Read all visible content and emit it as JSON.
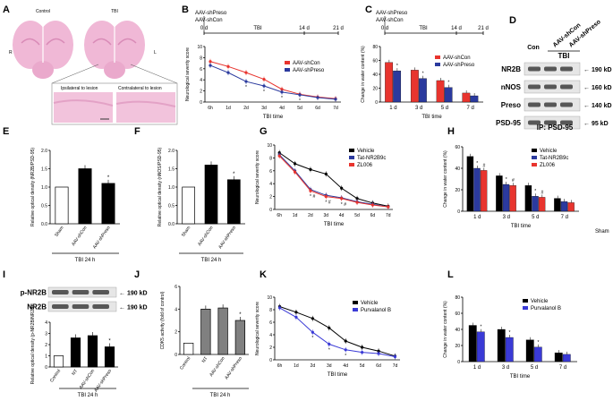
{
  "figure": {
    "A": {
      "letter": "A",
      "control": "Control",
      "tbi": "TBI",
      "R": "R",
      "L": "L",
      "ipsi": "Ipsilateral to lesion",
      "contra": "Contralateral to lesion"
    },
    "B": {
      "letter": "B",
      "tl1": "AAV-shPreso",
      "tl2": "AAV-shCon",
      "t0": "0 d",
      "t1": "TBI",
      "t2": "14 d",
      "t3": "21 d"
    },
    "C": {
      "letter": "C",
      "tl1": "AAV-shPreso",
      "tl2": "AAV-shCon",
      "t0": "0 d",
      "t1": "TBI",
      "t2": "14 d",
      "t3": "21 d"
    },
    "D": {
      "letter": "D",
      "con": "Con",
      "tbi": "TBI",
      "lane2": "AAV-shCon",
      "lane3": "AAV-shPreso",
      "rows": [
        {
          "name": "NR2B",
          "kd": "190 kD"
        },
        {
          "name": "nNOS",
          "kd": "160 kD"
        },
        {
          "name": "Preso",
          "kd": "140 kD"
        },
        {
          "name": "PSD-95",
          "kd": "95 kD"
        }
      ],
      "ip": "IP: PSD-95"
    },
    "E": {
      "letter": "E",
      "group": "TBI 24 h"
    },
    "F": {
      "letter": "F",
      "group": "TBI 24 h"
    },
    "G": {
      "letter": "G"
    },
    "H": {
      "letter": "H",
      "sham": "Sham"
    },
    "I": {
      "letter": "I",
      "rows": [
        {
          "name": "p-NR2B",
          "kd": "190 kD"
        },
        {
          "name": "NR2B",
          "kd": "190 kD"
        }
      ],
      "group": "TBI 24 h"
    },
    "J": {
      "letter": "J",
      "group": "TBI 24 h"
    },
    "K": {
      "letter": "K"
    },
    "L": {
      "letter": "L"
    }
  },
  "chart_data": [
    {
      "id": "B",
      "type": "line",
      "xlabel": "TBI time",
      "ylabel": "Neurological severity score",
      "ylim": [
        0,
        10
      ],
      "yticks": [
        0,
        2,
        4,
        6,
        8,
        10
      ],
      "categories": [
        "6h",
        "1d",
        "2d",
        "3d",
        "4d",
        "5d",
        "6d",
        "7d"
      ],
      "series": [
        {
          "name": "AAV-shCon",
          "color": "#e8342e",
          "values": [
            7.3,
            6.4,
            5.3,
            4.1,
            2.3,
            1.4,
            0.9,
            0.6
          ]
        },
        {
          "name": "AAV-shPreso",
          "color": "#2b3a9e",
          "values": [
            6.6,
            5.3,
            3.7,
            2.9,
            1.8,
            1.3,
            0.8,
            0.5
          ]
        }
      ],
      "annotations": [
        "*",
        "*",
        "*",
        "*"
      ]
    },
    {
      "id": "C",
      "type": "bar",
      "xlabel": "TBI time",
      "ylabel": "Change in water content (%)",
      "ylim": [
        0,
        80
      ],
      "yticks": [
        0,
        20,
        40,
        60,
        80
      ],
      "categories": [
        "1 d",
        "3 d",
        "5 d",
        "7 d"
      ],
      "series": [
        {
          "name": "AAV-shCon",
          "color": "#e8342e",
          "values": [
            57,
            46,
            31,
            13
          ]
        },
        {
          "name": "AAV-shPreso",
          "color": "#2b3a9e",
          "values": [
            45,
            34,
            21,
            9
          ]
        }
      ],
      "annotations": [
        "*",
        "*",
        "*"
      ]
    },
    {
      "id": "E",
      "type": "bar",
      "ylabel": "Relative optical density (NR2B/PSD-95)",
      "ylim": [
        0,
        2.0
      ],
      "yticks": [
        0,
        0.5,
        1.0,
        1.5,
        2.0
      ],
      "categories": [
        "Sham",
        "AAV-shCon",
        "AAV-shPreso"
      ],
      "values": [
        1.0,
        1.5,
        1.1
      ],
      "colors": [
        "#ffffff",
        "#000000",
        "#000000"
      ],
      "annotations": [
        "*"
      ]
    },
    {
      "id": "F",
      "type": "bar",
      "ylabel": "Relative optical density (nNOS/PSD-95)",
      "ylim": [
        0,
        2.0
      ],
      "yticks": [
        0,
        0.5,
        1.0,
        1.5,
        2.0
      ],
      "categories": [
        "Sham",
        "AAV-shCon",
        "AAV-shPreso"
      ],
      "values": [
        1.0,
        1.6,
        1.2
      ],
      "colors": [
        "#ffffff",
        "#000000",
        "#000000"
      ],
      "annotations": [
        "*"
      ]
    },
    {
      "id": "G",
      "type": "line",
      "xlabel": "TBI time",
      "ylabel": "Neurological severity score",
      "ylim": [
        0,
        10
      ],
      "yticks": [
        0,
        2,
        4,
        6,
        8,
        10
      ],
      "categories": [
        "6h",
        "1d",
        "2d",
        "3d",
        "4d",
        "5d",
        "6d",
        "7d"
      ],
      "series": [
        {
          "name": "Vehicle",
          "color": "#000000",
          "values": [
            8.8,
            7.1,
            6.2,
            5.5,
            3.3,
            1.7,
            1.0,
            0.5
          ]
        },
        {
          "name": "Tat-NR2B9c",
          "color": "#2b3a9e",
          "values": [
            8.5,
            6.0,
            3.1,
            2.2,
            1.8,
            1.2,
            0.8,
            0.4
          ]
        },
        {
          "name": "ZL006",
          "color": "#e8342e",
          "values": [
            8.3,
            5.8,
            2.9,
            2.0,
            1.7,
            1.1,
            0.7,
            0.4
          ]
        }
      ],
      "annotations": [
        "*",
        "#",
        "*",
        "#",
        "*",
        "#"
      ]
    },
    {
      "id": "H",
      "type": "bar",
      "xlabel": "TBI time",
      "ylabel": "Change in water content (%)",
      "ylim": [
        0,
        60
      ],
      "yticks": [
        0,
        20,
        40,
        60
      ],
      "categories": [
        "1 d",
        "3 d",
        "5 d",
        "7 d"
      ],
      "series": [
        {
          "name": "Vehicle",
          "color": "#000000",
          "values": [
            51,
            33,
            24,
            12
          ]
        },
        {
          "name": "Tat-NR2B9c",
          "color": "#2b3a9e",
          "values": [
            40,
            25,
            14,
            9
          ]
        },
        {
          "name": "ZL006",
          "color": "#e8342e",
          "values": [
            38,
            24,
            13,
            8
          ]
        }
      ],
      "annotations": [
        "*",
        "#",
        "*",
        "#",
        "*",
        "#"
      ]
    },
    {
      "id": "I",
      "type": "bar",
      "ylabel": "Relative optical density (p-NR2B/NR2B)",
      "ylim": [
        0,
        4
      ],
      "yticks": [
        0,
        1,
        2,
        3,
        4
      ],
      "categories": [
        "Control",
        "NT",
        "AAV-shCon",
        "AAV-shPreso"
      ],
      "values": [
        1.0,
        2.6,
        2.8,
        1.8
      ],
      "colors": [
        "#ffffff",
        "#000000",
        "#000000",
        "#000000"
      ],
      "annotations": [
        "*"
      ]
    },
    {
      "id": "J",
      "type": "bar",
      "ylabel": "CDK5 activity (fold of control)",
      "ylim": [
        0,
        6
      ],
      "yticks": [
        0,
        2,
        4,
        6
      ],
      "categories": [
        "Control",
        "NT",
        "AAV-shCon",
        "AAV-shPreso"
      ],
      "values": [
        1.0,
        4.0,
        4.1,
        3.0
      ],
      "colors": [
        "#ffffff",
        "#808080",
        "#808080",
        "#808080"
      ],
      "annotations": [
        "*"
      ]
    },
    {
      "id": "K",
      "type": "line",
      "xlabel": "TBI time",
      "ylabel": "Neurological severity score",
      "ylim": [
        0,
        10
      ],
      "yticks": [
        0,
        2,
        4,
        6,
        8,
        10
      ],
      "categories": [
        "6h",
        "1d",
        "2d",
        "3d",
        "4d",
        "5d",
        "6d",
        "7d"
      ],
      "series": [
        {
          "name": "Vehicle",
          "color": "#000000",
          "values": [
            8.5,
            7.6,
            6.6,
            5.1,
            3.0,
            2.0,
            1.4,
            0.6
          ]
        },
        {
          "name": "Purvalanol B",
          "color": "#3a3ad6",
          "values": [
            8.3,
            6.8,
            4.4,
            2.5,
            1.6,
            1.2,
            1.0,
            0.5
          ]
        }
      ],
      "annotations": [
        "*",
        "*",
        "*"
      ]
    },
    {
      "id": "L",
      "type": "bar",
      "xlabel": "TBI time",
      "ylabel": "Change in water content (%)",
      "ylim": [
        0,
        80
      ],
      "yticks": [
        0,
        20,
        40,
        60,
        80
      ],
      "categories": [
        "1 d",
        "3 d",
        "5 d",
        "7 d"
      ],
      "series": [
        {
          "name": "Vehicle",
          "color": "#000000",
          "values": [
            45,
            40,
            27,
            11
          ]
        },
        {
          "name": "Purvalanol B",
          "color": "#3a3ad6",
          "values": [
            37,
            30,
            18,
            9
          ]
        }
      ],
      "annotations": [
        "*",
        "*",
        "*"
      ]
    }
  ]
}
